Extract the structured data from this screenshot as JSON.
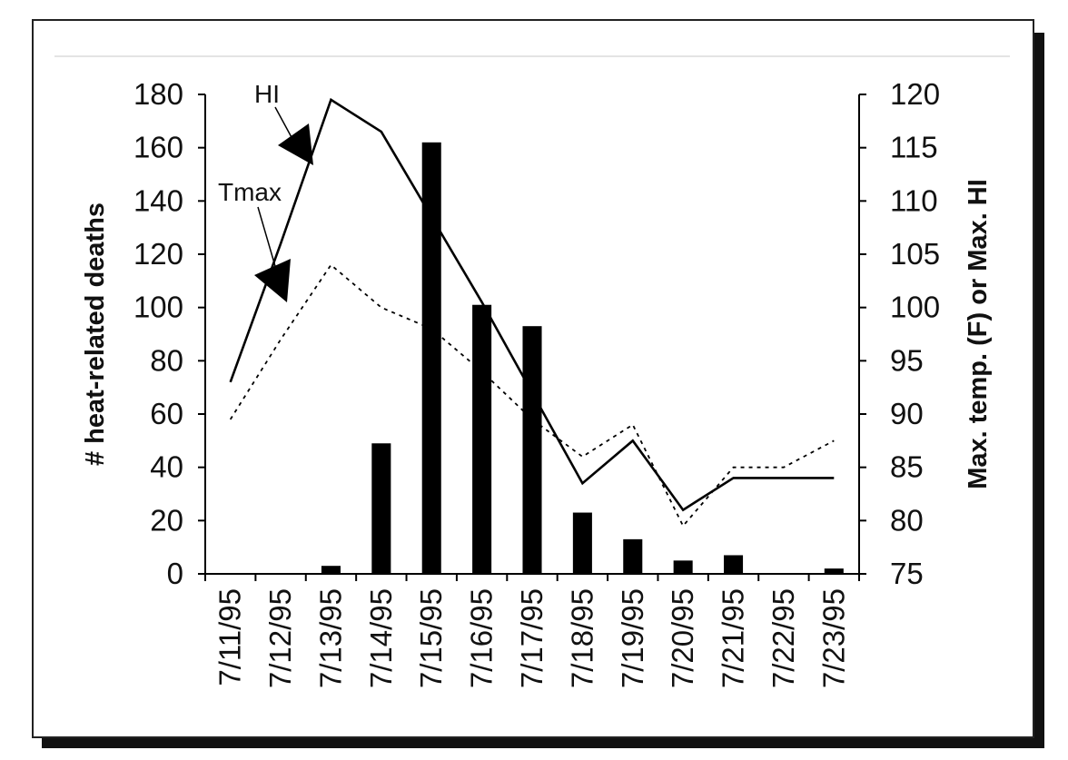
{
  "chart_data": {
    "type": "bar",
    "title": "",
    "categories": [
      "7/11/95",
      "7/12/95",
      "7/13/95",
      "7/14/95",
      "7/15/95",
      "7/16/95",
      "7/17/95",
      "7/18/95",
      "7/19/95",
      "7/20/95",
      "7/21/95",
      "7/22/95",
      "7/23/95"
    ],
    "ylabel": "# heat-related deaths",
    "ylabel_right": "Max. temp. (F) or Max. HI",
    "ylim": [
      0,
      180
    ],
    "yticks": [
      0,
      20,
      40,
      60,
      80,
      100,
      120,
      140,
      160,
      180
    ],
    "ylim_right": [
      75,
      120
    ],
    "yticks_right": [
      75,
      80,
      85,
      90,
      95,
      100,
      105,
      110,
      115,
      120
    ],
    "grid": false,
    "series": [
      {
        "kind": "bar",
        "axis": "left",
        "values": [
          0,
          0,
          3,
          49,
          162,
          101,
          93,
          23,
          13,
          5,
          7,
          0,
          2
        ],
        "color": "#000000"
      },
      {
        "name": "HI",
        "kind": "line",
        "style": "solid",
        "axis": "right",
        "values": [
          93,
          106,
          119.5,
          116.5,
          108.5,
          100.5,
          92,
          83.5,
          87.5,
          81,
          84,
          84,
          84
        ],
        "color": "#000000"
      },
      {
        "name": "Tmax",
        "kind": "line",
        "style": "dotted",
        "axis": "right",
        "values": [
          89.5,
          97,
          104,
          100,
          98,
          94,
          89.5,
          86,
          89,
          79.5,
          85,
          85,
          87.5
        ],
        "color": "#000000"
      }
    ],
    "annotations": [
      {
        "text": "HI",
        "target_series": "HI",
        "target_index": 2
      },
      {
        "text": "Tmax",
        "target_series": "Tmax",
        "target_index": 2
      }
    ]
  }
}
